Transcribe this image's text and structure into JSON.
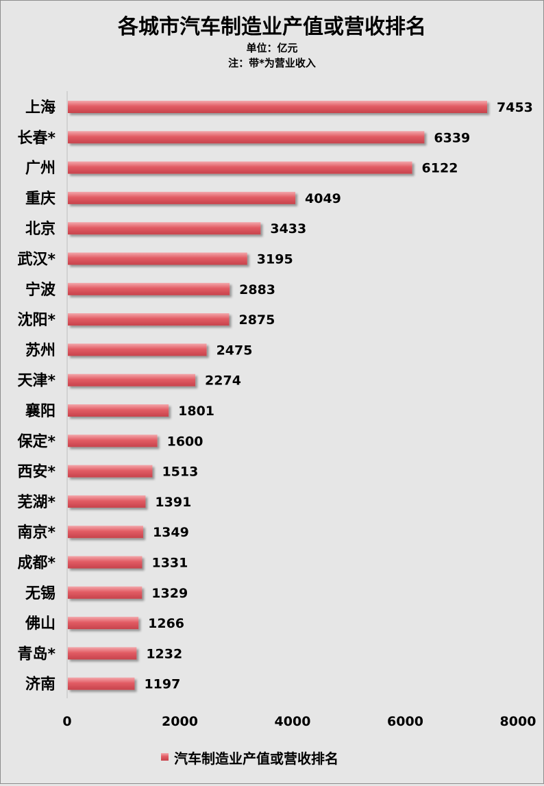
{
  "chart_data": {
    "type": "bar",
    "orientation": "horizontal",
    "title": "各城市汽车制造业产值或营收排名",
    "subtitle_unit": "单位：亿元",
    "subtitle_note": "注：带*为营业收入",
    "categories": [
      "上海",
      "长春*",
      "广州",
      "重庆",
      "北京",
      "武汉*",
      "宁波",
      "沈阳*",
      "苏州",
      "天津*",
      "襄阳",
      "保定*",
      "西安*",
      "芜湖*",
      "南京*",
      "成都*",
      "无锡",
      "佛山",
      "青岛*",
      "济南"
    ],
    "series": [
      {
        "name": "汽车制造业产值或营收排名",
        "values": [
          7453,
          6339,
          6122,
          4049,
          3433,
          3195,
          2883,
          2875,
          2475,
          2274,
          1801,
          1600,
          1513,
          1391,
          1349,
          1331,
          1329,
          1266,
          1232,
          1197
        ],
        "color": "#e05a62"
      }
    ],
    "xlim": [
      0,
      8000
    ],
    "xticks": [
      0,
      2000,
      4000,
      6000,
      8000
    ],
    "grid": false,
    "legend": "bottom",
    "data_labels": true
  }
}
